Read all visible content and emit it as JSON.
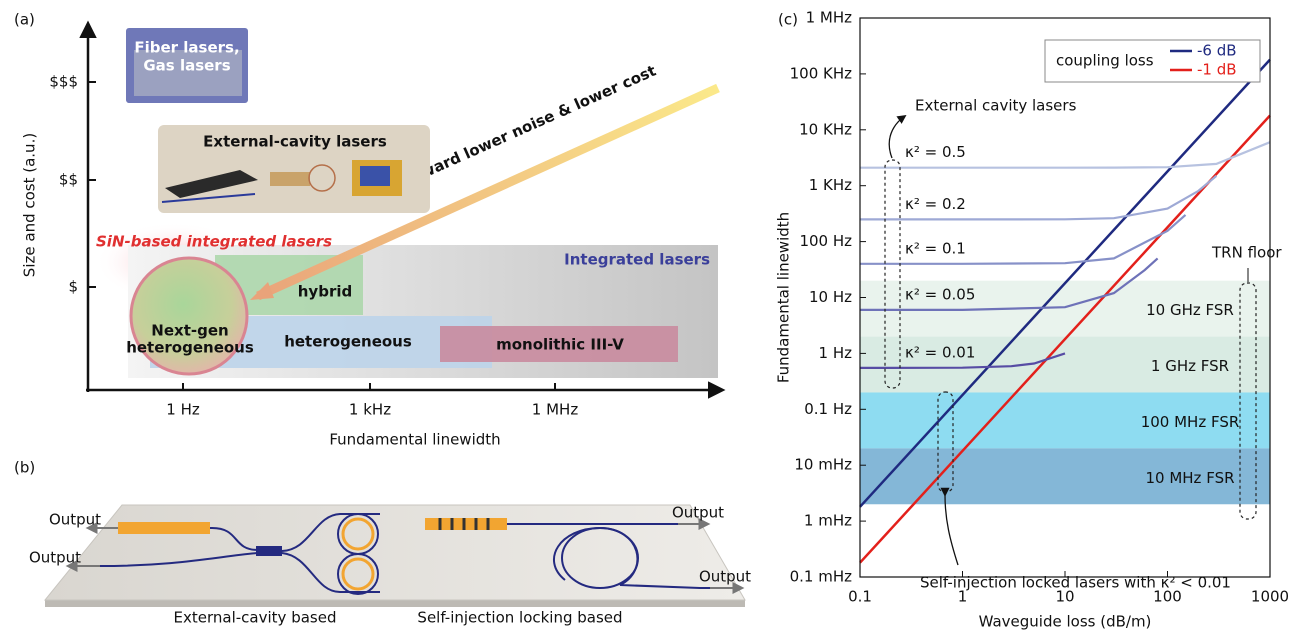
{
  "panel_a": {
    "label": "(a)",
    "y_axis_label": "Size and cost (a.u.)",
    "y_tick_labels": [
      "$$$",
      "$$",
      "$"
    ],
    "x_tick_labels": [
      "1 Hz",
      "1 kHz",
      "1 MHz"
    ],
    "x_axis_label": "Fundamental linewidth",
    "fiber_box": [
      "Fiber lasers,",
      "Gas lasers"
    ],
    "external_cavity_box": "External-cavity lasers",
    "sin_label": "SiN-based integrated lasers",
    "integrated_label": "Integrated lasers",
    "hybrid": "hybrid",
    "heterogeneous": "heterogeneous",
    "monolithic": "monolithic III-V",
    "next_gen": [
      "Next-gen",
      "heterogeneous"
    ],
    "trend_arrow": "Toward lower noise & lower cost"
  },
  "panel_b": {
    "label": "(b)",
    "outputs": [
      "Output",
      "Output",
      "Output",
      "Output"
    ],
    "captions": [
      "External-cavity based",
      "Self-injection locking based"
    ]
  },
  "chart_data": {
    "type": "line",
    "panel_label": "(c)",
    "xlabel": "Waveguide loss (dB/m)",
    "ylabel": "Fundamental linewidth",
    "log_x": true,
    "log_y": true,
    "xlim": [
      0.1,
      1000
    ],
    "ylim": [
      0.0001,
      1000000
    ],
    "xticks": [
      0.1,
      1,
      10,
      100,
      1000
    ],
    "yticks": [
      {
        "value": 0.0001,
        "label": "0.1 mHz"
      },
      {
        "value": 0.001,
        "label": "1 mHz"
      },
      {
        "value": 0.01,
        "label": "10 mHz"
      },
      {
        "value": 0.1,
        "label": "0.1 Hz"
      },
      {
        "value": 1,
        "label": "1 Hz"
      },
      {
        "value": 10,
        "label": "10 Hz"
      },
      {
        "value": 100,
        "label": "100 Hz"
      },
      {
        "value": 1000,
        "label": "1 KHz"
      },
      {
        "value": 10000,
        "label": "10 KHz"
      },
      {
        "value": 100000,
        "label": "100 KHz"
      },
      {
        "value": 1000000,
        "label": "1 MHz"
      }
    ],
    "legend": {
      "title": "coupling loss",
      "position": "upper right"
    },
    "series": [
      {
        "name": "-6 dB",
        "color": "#1f2a80",
        "in_legend": true,
        "x": [
          0.1,
          1000
        ],
        "values": [
          0.0018,
          180000
        ]
      },
      {
        "name": "-1 dB",
        "color": "#e3201b",
        "in_legend": true,
        "x": [
          0.1,
          1000
        ],
        "values": [
          0.00018,
          18000
        ]
      },
      {
        "name": "κ² = 0.5",
        "color": "#b7c2e0",
        "in_legend": false,
        "x": [
          0.1,
          1,
          10,
          30,
          100,
          300,
          1000
        ],
        "values": [
          2100,
          2100,
          2100,
          2104,
          2140,
          2450,
          6000
        ]
      },
      {
        "name": "κ² = 0.2",
        "color": "#9ea9d5",
        "in_legend": false,
        "x": [
          0.1,
          1,
          10,
          30,
          100,
          200,
          300
        ],
        "values": [
          250,
          250,
          251,
          262,
          389,
          806,
          1500
        ]
      },
      {
        "name": "κ² = 0.1",
        "color": "#8791c8",
        "in_legend": false,
        "x": [
          0.1,
          1,
          10,
          30,
          100,
          150
        ],
        "values": [
          40,
          40,
          41,
          50,
          156,
          300
        ]
      },
      {
        "name": "κ² = 0.05",
        "color": "#6e72b8",
        "in_legend": false,
        "x": [
          0.1,
          1,
          10,
          30,
          60,
          80
        ],
        "values": [
          6,
          6,
          6.7,
          12,
          31,
          50
        ]
      },
      {
        "name": "κ² = 0.01",
        "color": "#574ca4",
        "in_legend": false,
        "x": [
          0.1,
          1,
          3,
          5,
          10
        ],
        "values": [
          0.55,
          0.555,
          0.59,
          0.66,
          1
        ]
      }
    ],
    "bands": [
      {
        "label": "10 GHz FSR",
        "range": [
          2,
          20
        ],
        "color": "#e9f3ed"
      },
      {
        "label": "1 GHz FSR",
        "range": [
          0.2,
          2
        ],
        "color": "#d9ebe3"
      },
      {
        "label": "100 MHz FSR",
        "range": [
          0.02,
          0.2
        ],
        "color": "#8edcf1"
      },
      {
        "label": "10 MHz FSR",
        "range": [
          0.002,
          0.02
        ],
        "color": "#84b7d7"
      }
    ],
    "annotations": [
      "External cavity lasers",
      "Self-injection locked lasers with κ² < 0.01",
      "TRN floor"
    ]
  }
}
